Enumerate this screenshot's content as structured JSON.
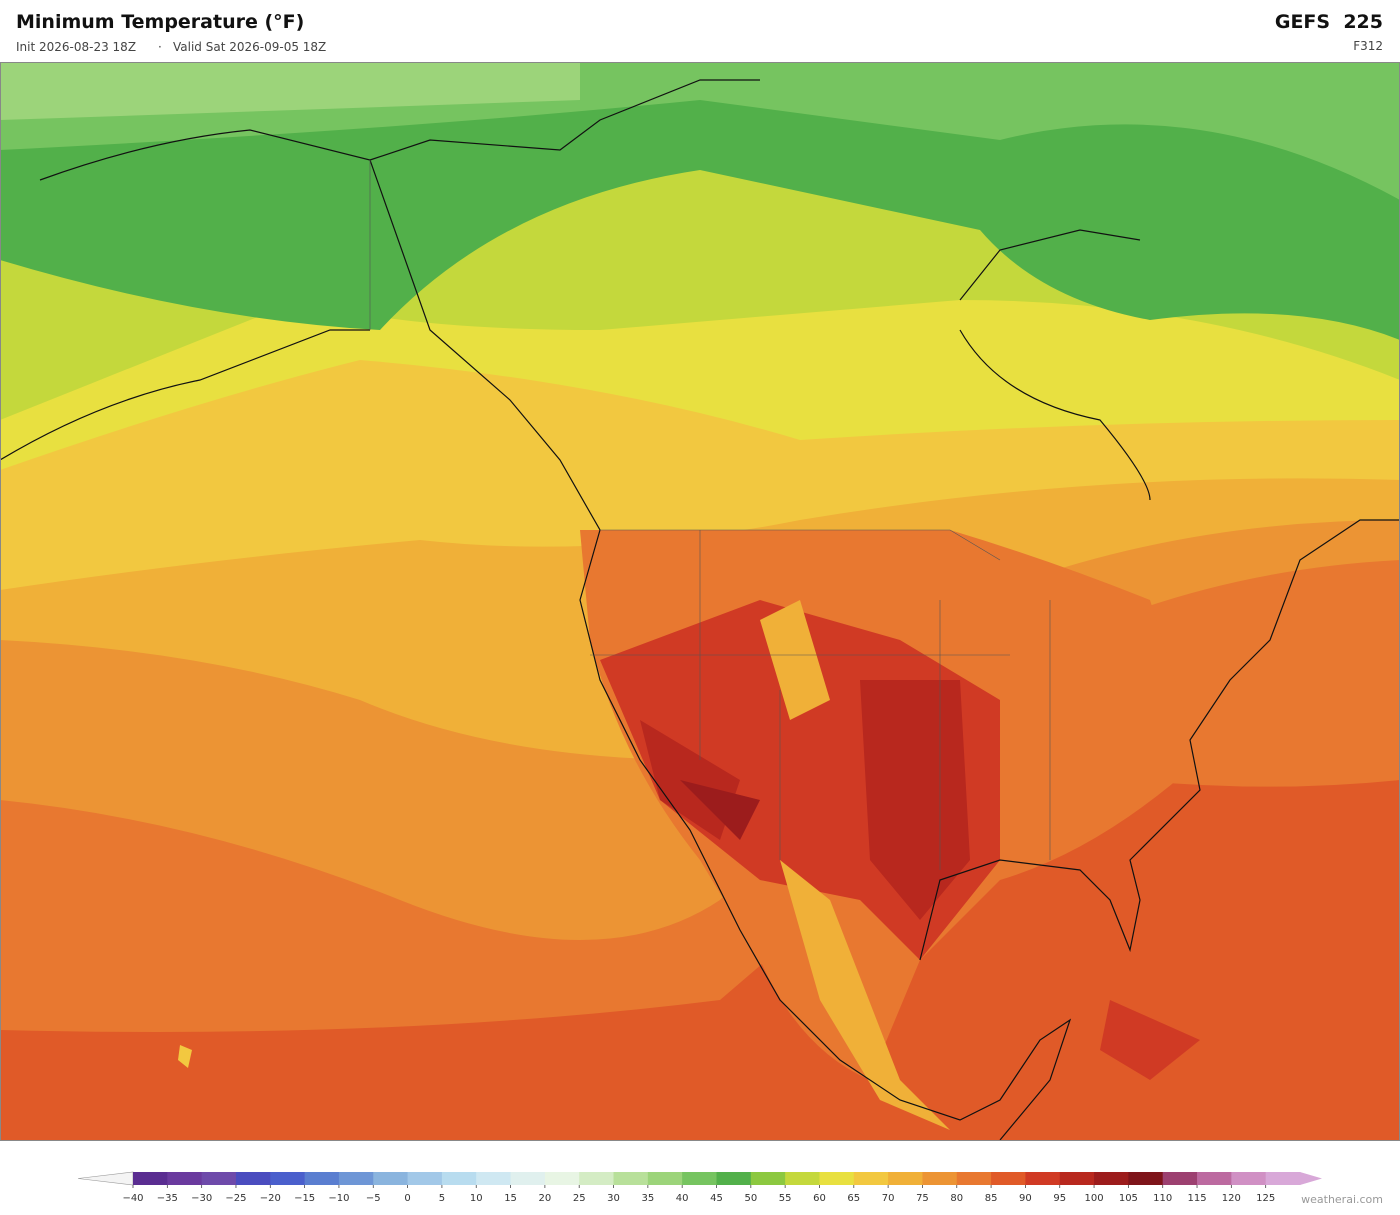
{
  "header": {
    "title": "Minimum Temperature  (°F)",
    "init": "Init 2026-08-23 18Z",
    "separator": "·",
    "valid": "Valid Sat 2026-09-05 18Z",
    "model": "GEFS  225",
    "forecast_hour": "F312"
  },
  "colorbar": {
    "clim": [
      -40,
      130
    ],
    "colors": [
      "#5a2d91",
      "#6a3a9e",
      "#6e4aaa",
      "#4a4cbf",
      "#4a5fcc",
      "#5a7ed0",
      "#6e96d6",
      "#8ab4de",
      "#a2c8e8",
      "#b8dcef",
      "#cfe8f2",
      "#e0f0ee",
      "#e8f5e4",
      "#d4ecc4",
      "#b8e09a",
      "#9cd47a",
      "#76c460",
      "#52b04a",
      "#8cc840",
      "#c4d83c",
      "#e8e040",
      "#f2c840",
      "#f0b038",
      "#ec9434",
      "#e87830",
      "#e05a28",
      "#d03a24",
      "#b8281e",
      "#9c1c1c",
      "#7e141a",
      "#9c4070",
      "#bc6aa0",
      "#d090c4",
      "#d8a8d8"
    ],
    "under_color": "#f4f4f4",
    "over_color": "#d8a8d8",
    "ticks": [
      {
        "value": -40,
        "label": "−40"
      },
      {
        "value": -35,
        "label": "−35"
      },
      {
        "value": -30,
        "label": "−30"
      },
      {
        "value": -25,
        "label": "−25"
      },
      {
        "value": -20,
        "label": "−20"
      },
      {
        "value": -15,
        "label": "−15"
      },
      {
        "value": -10,
        "label": "−10"
      },
      {
        "value": -5,
        "label": "−5"
      },
      0,
      5,
      10,
      15,
      20,
      25,
      30,
      35,
      40,
      45,
      50,
      55,
      60,
      65,
      70,
      75,
      80,
      85,
      90,
      95,
      100,
      105,
      110,
      115,
      120,
      125
    ]
  },
  "watermark": "weatherai.com"
}
